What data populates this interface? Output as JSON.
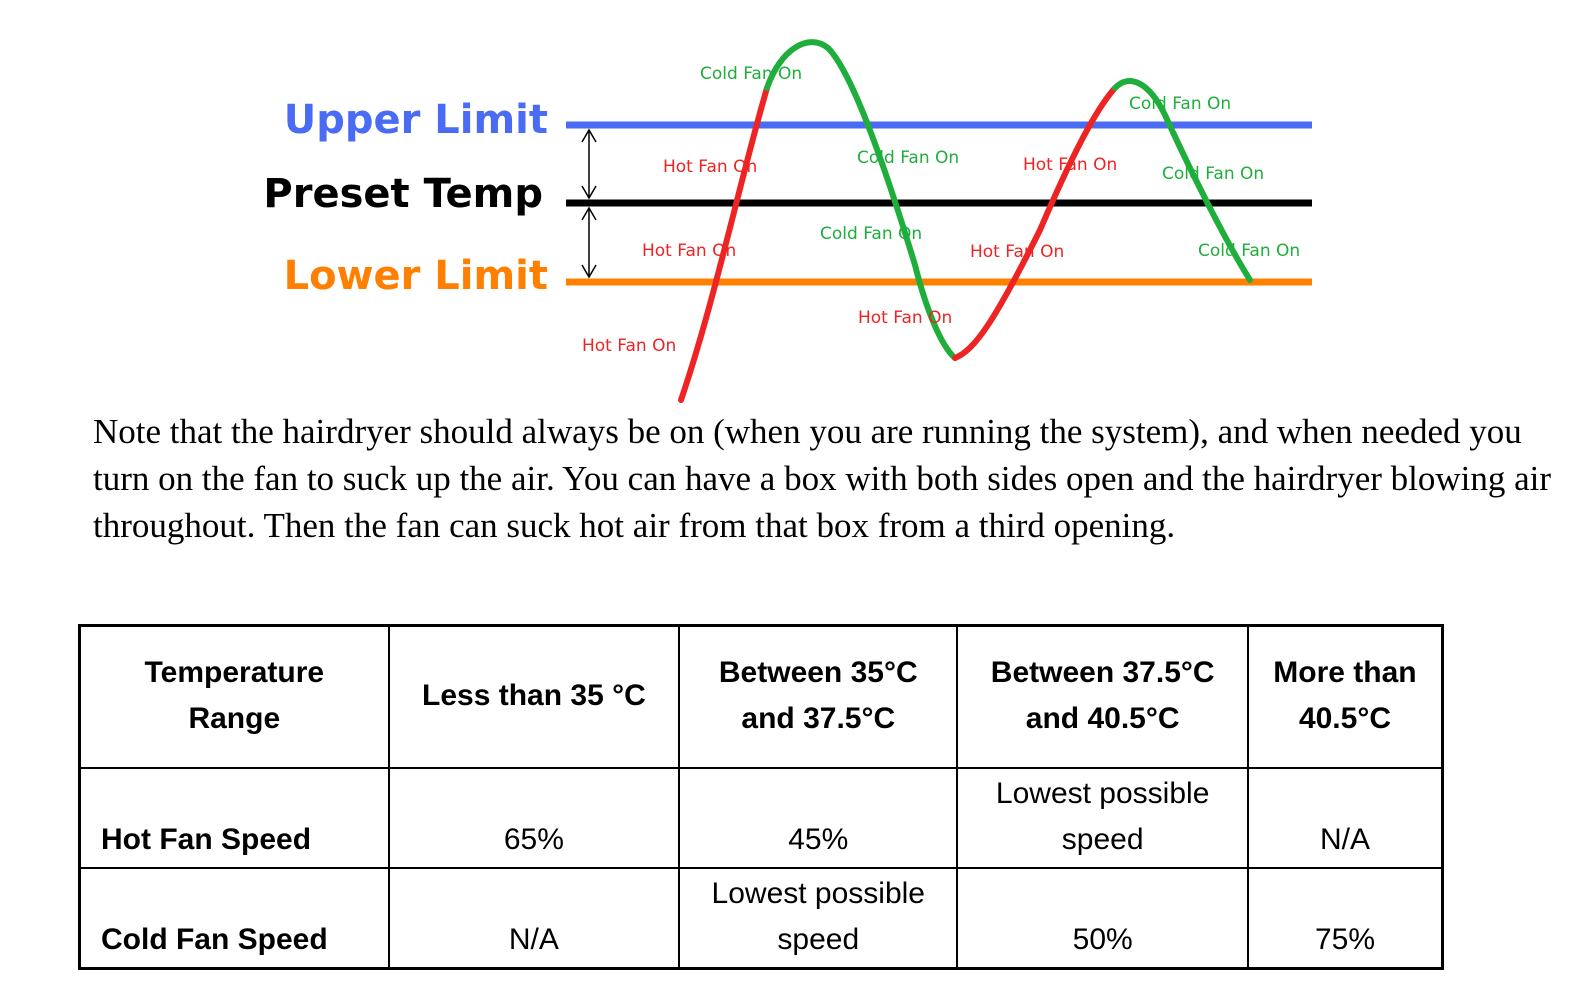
{
  "diagram": {
    "limits": {
      "upper": {
        "label": "Upper Limit",
        "color": "#4a6cf5"
      },
      "preset": {
        "label": "Preset Temp",
        "color": "#000000"
      },
      "lower": {
        "label": "Lower Limit",
        "color": "#ff8000"
      }
    },
    "curve_colors": {
      "hot": "#ee2424",
      "cold": "#1fae3c"
    },
    "state_labels": [
      {
        "text": "Cold Fan On",
        "state": "cold"
      },
      {
        "text": "Cold Fan On",
        "state": "cold"
      },
      {
        "text": "Hot Fan On",
        "state": "hot"
      },
      {
        "text": "Cold Fan On",
        "state": "cold"
      },
      {
        "text": "Hot Fan On",
        "state": "hot"
      },
      {
        "text": "Cold Fan On",
        "state": "cold"
      },
      {
        "text": "Hot Fan On",
        "state": "hot"
      },
      {
        "text": "Cold Fan On",
        "state": "cold"
      },
      {
        "text": "Hot Fan On",
        "state": "hot"
      },
      {
        "text": "Cold Fan On",
        "state": "cold"
      },
      {
        "text": "Hot Fan On",
        "state": "hot"
      },
      {
        "text": "Hot Fan On",
        "state": "hot"
      }
    ]
  },
  "note": "Note that the hairdryer should always be on (when you are running the system), and when needed you turn on the fan to suck up the air. You can have a box with both sides open and the hairdryer blowing air throughout. Then the fan can suck hot air from that box from a third opening.",
  "table": {
    "headers": {
      "range": [
        "Temperature",
        "Range"
      ],
      "col1": [
        "Less than 35 °C"
      ],
      "col2": [
        "Between 35°C",
        "and 37.5°C"
      ],
      "col3": [
        "Between 37.5°C",
        "and 40.5°C"
      ],
      "col4": [
        "More than",
        "40.5°C"
      ]
    },
    "hot_row": {
      "label": "Hot Fan Speed",
      "values": [
        "65%",
        "45%",
        [
          "Lowest possible",
          "speed"
        ],
        "N/A"
      ]
    },
    "cold_row": {
      "label": "Cold Fan Speed",
      "values": [
        "N/A",
        [
          "Lowest possible",
          "speed"
        ],
        "50%",
        "75%"
      ]
    }
  }
}
